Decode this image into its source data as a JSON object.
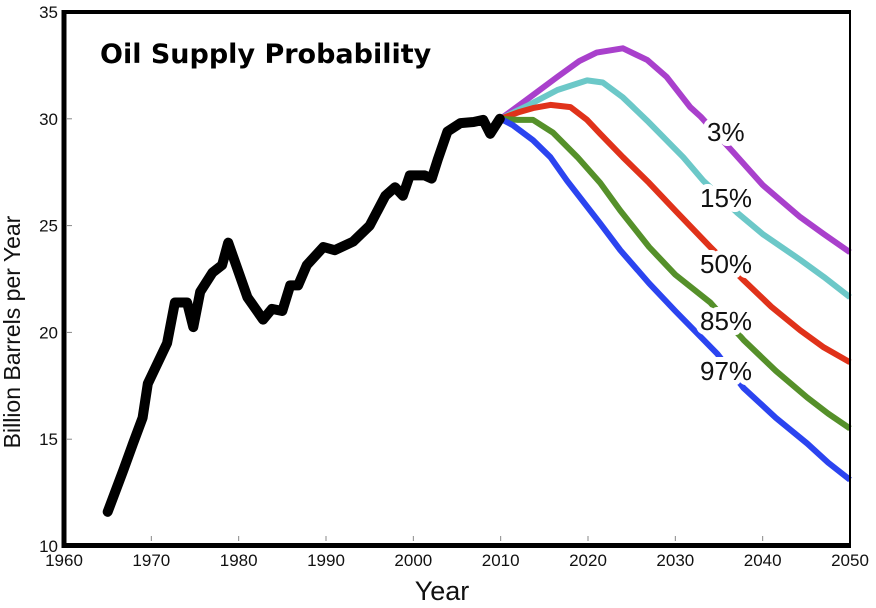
{
  "chart_data": {
    "type": "line",
    "title": "Oil Supply Probability",
    "xlabel": "Year",
    "ylabel": "Billion Barrels per Year",
    "xlim": [
      1960,
      2050
    ],
    "ylim": [
      10,
      35
    ],
    "x_ticks": [
      1960,
      1970,
      1980,
      1990,
      2000,
      2010,
      2020,
      2030,
      2040,
      2050
    ],
    "y_ticks": [
      10,
      15,
      20,
      25,
      30,
      35
    ],
    "grid": false,
    "legend": "inline labels at right",
    "series": [
      {
        "name": "historical",
        "label": "",
        "color": "#000000",
        "x": [
          1965,
          1966.8,
          1967.9,
          1969,
          1969.6,
          1971.8,
          1972.7,
          1974.1,
          1974.8,
          1975.6,
          1977,
          1978.1,
          1978.8,
          1981,
          1982.8,
          1983.8,
          1985,
          1985.9,
          1986.8,
          1987.8,
          1989.7,
          1991,
          1993.1,
          1995,
          1996.8,
          1997.9,
          1998.8,
          1999.6,
          2001.3,
          2002.1,
          2002.8,
          2003.9,
          2005.4,
          2006.9,
          2008,
          2008.8,
          2009.9
        ],
        "y": [
          11.6,
          13.56,
          14.8,
          16.0,
          17.6,
          19.5,
          21.4,
          21.4,
          20.25,
          21.9,
          22.8,
          23.15,
          24.2,
          21.65,
          20.6,
          21.1,
          21.0,
          22.2,
          22.2,
          23.15,
          24.0,
          23.85,
          24.25,
          25.0,
          26.4,
          26.8,
          26.4,
          27.35,
          27.35,
          27.2,
          28.1,
          29.4,
          29.8,
          29.85,
          29.95,
          29.3,
          30.0
        ]
      },
      {
        "name": "3%",
        "label": "3%",
        "color": "#a940cc",
        "x": [
          2010,
          2013,
          2016.5,
          2019,
          2021,
          2024,
          2026.8,
          2029,
          2031.7,
          2032.9,
          2036.6,
          2040,
          2044.3,
          2047,
          2050
        ],
        "y": [
          30.0,
          30.9,
          31.96,
          32.7,
          33.1,
          33.3,
          32.75,
          31.96,
          30.55,
          30.1,
          28.45,
          26.9,
          25.4,
          24.6,
          23.75
        ]
      },
      {
        "name": "15%",
        "label": "15%",
        "color": "#6cc8c8",
        "x": [
          2010,
          2013,
          2016.5,
          2019.9,
          2021.7,
          2024,
          2026.8,
          2030.9,
          2033.2,
          2037.1,
          2040,
          2044.3,
          2047,
          2050
        ],
        "y": [
          30.0,
          30.6,
          31.35,
          31.8,
          31.7,
          31.0,
          29.9,
          28.2,
          27.1,
          25.6,
          24.6,
          23.4,
          22.6,
          21.65
        ]
      },
      {
        "name": "50%",
        "label": "50%",
        "color": "#e0321a",
        "x": [
          2010,
          2012,
          2013.7,
          2015.7,
          2018,
          2019.9,
          2021.4,
          2024,
          2027,
          2030,
          2034,
          2037.8,
          2041,
          2044.3,
          2047,
          2050
        ],
        "y": [
          30.0,
          30.3,
          30.5,
          30.65,
          30.55,
          29.95,
          29.3,
          28.2,
          27.0,
          25.7,
          24.0,
          22.45,
          21.2,
          20.1,
          19.3,
          18.6
        ]
      },
      {
        "name": "85%",
        "label": "85%",
        "color": "#55902a",
        "x": [
          2010,
          2012,
          2013.7,
          2016,
          2018.8,
          2021.4,
          2023.7,
          2027,
          2030,
          2034,
          2037.8,
          2041.5,
          2045.1,
          2047.5,
          2050
        ],
        "y": [
          30.0,
          29.95,
          29.95,
          29.35,
          28.2,
          27.0,
          25.7,
          24.0,
          22.7,
          21.4,
          19.65,
          18.2,
          16.95,
          16.2,
          15.5
        ]
      },
      {
        "name": "97%",
        "label": "97%",
        "color": "#2b44f0",
        "x": [
          2010,
          2011.4,
          2013.7,
          2015.7,
          2017.6,
          2021.4,
          2023.7,
          2027,
          2030,
          2034.8,
          2037.8,
          2041.5,
          2045.1,
          2047.5,
          2050
        ],
        "y": [
          30.0,
          29.7,
          29.0,
          28.2,
          27.1,
          25.1,
          23.85,
          22.3,
          21.0,
          19.0,
          17.4,
          16.0,
          14.8,
          13.9,
          13.1
        ]
      }
    ]
  }
}
